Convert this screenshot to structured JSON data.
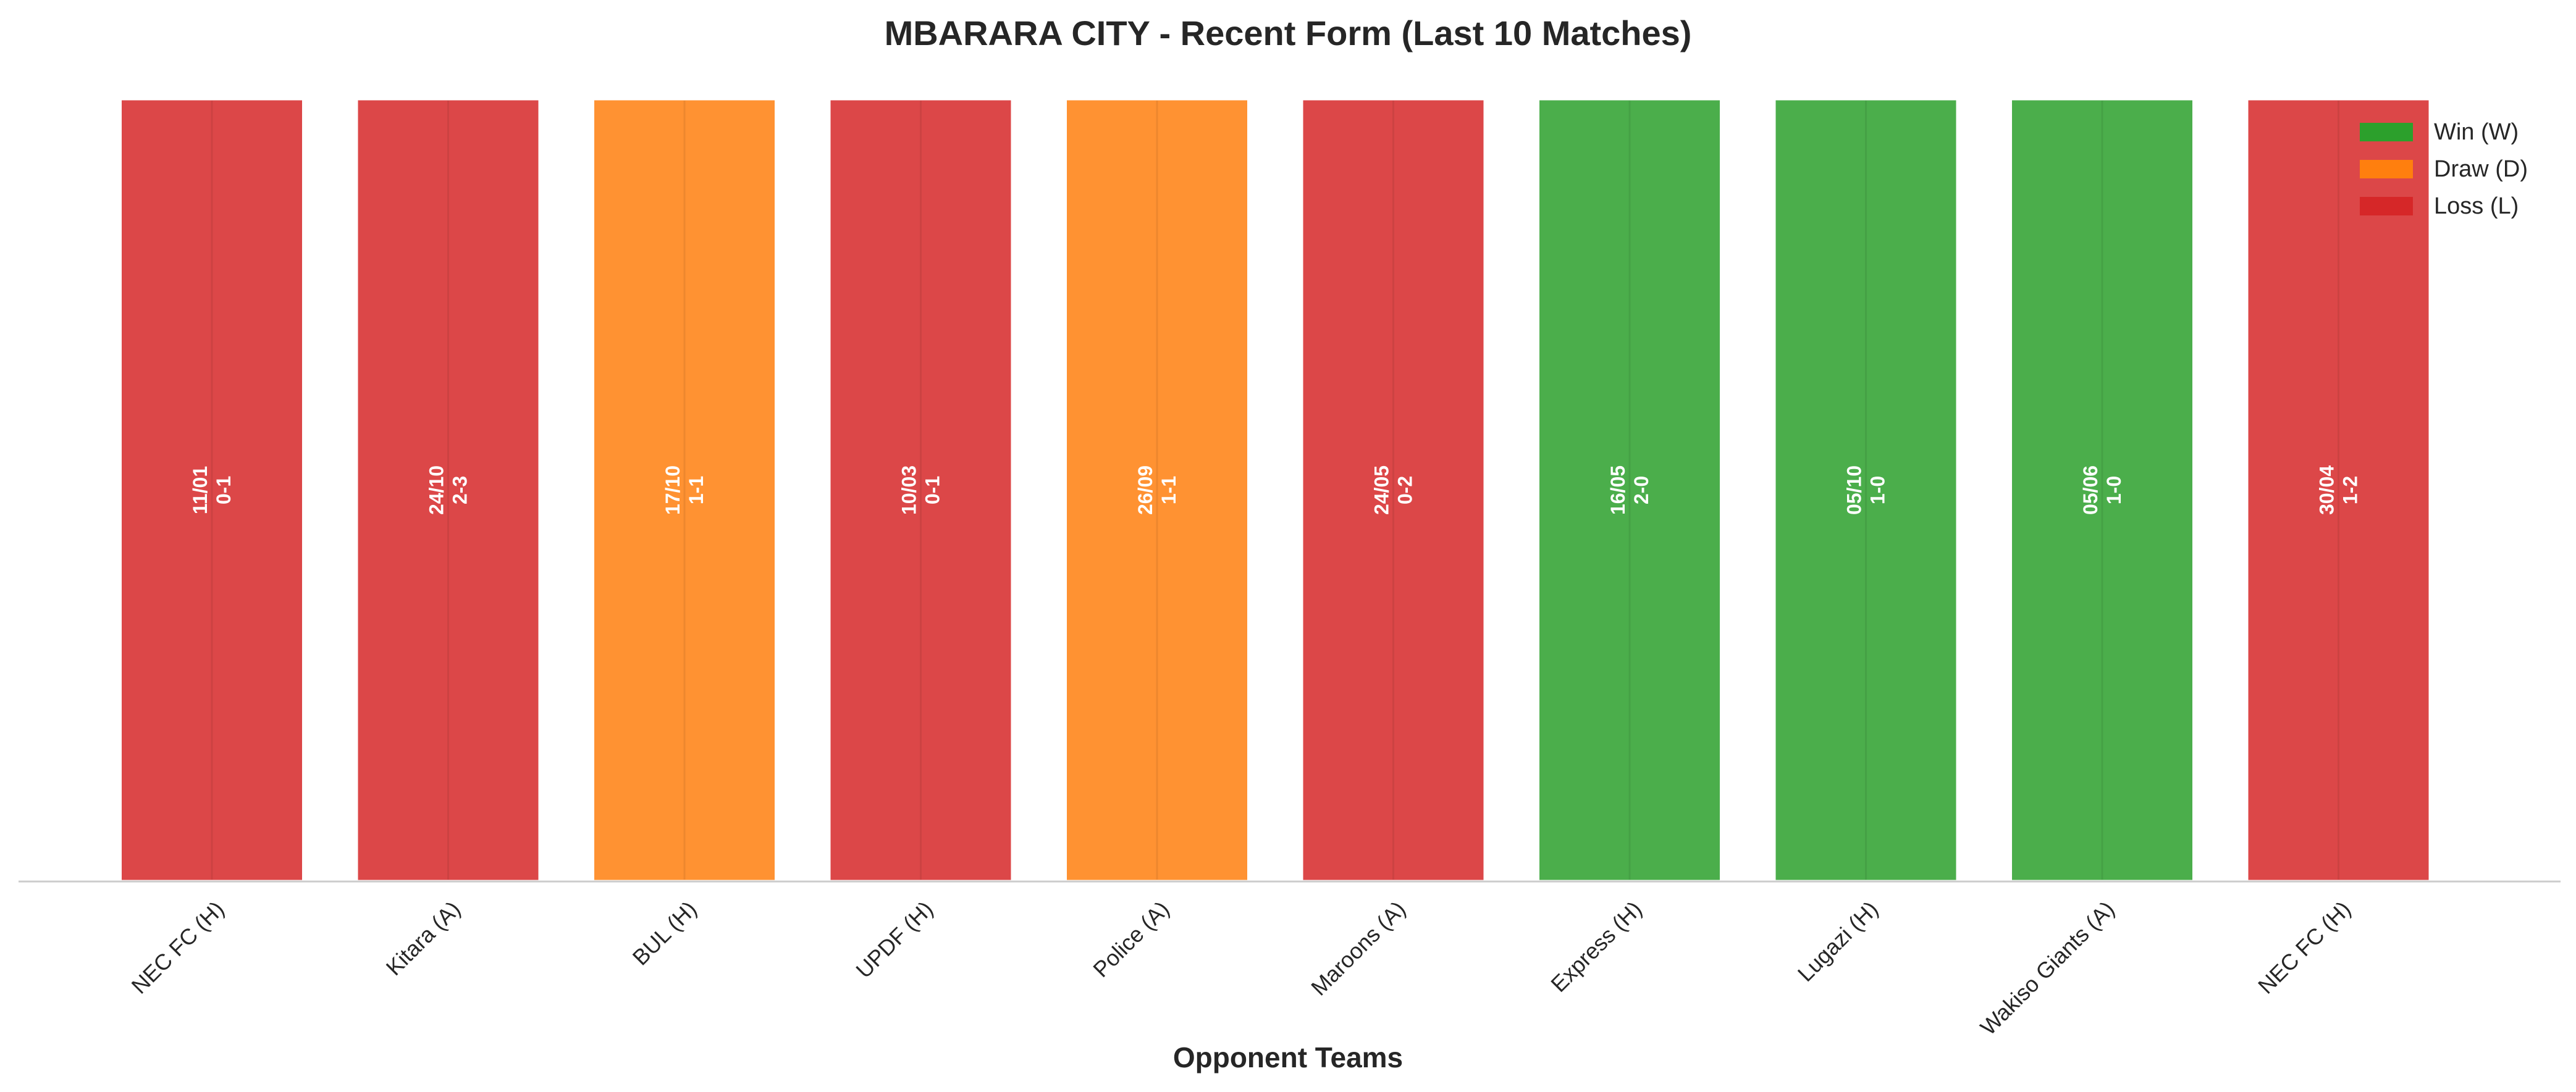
{
  "chart_data": {
    "type": "bar",
    "title": "MBARARA CITY - Recent Form (Last 10 Matches)",
    "xlabel": "Opponent Teams",
    "ylabel": "",
    "categories": [
      "NEC FC (H)",
      "Kitara (A)",
      "BUL (H)",
      "UPDF (H)",
      "Police (A)",
      "Maroons (A)",
      "Express (H)",
      "Lugazi (H)",
      "Wakiso Giants (A)",
      "NEC FC (H)"
    ],
    "values": [
      1,
      1,
      1,
      1,
      1,
      1,
      1,
      1,
      1,
      1
    ],
    "results": [
      "L",
      "L",
      "D",
      "L",
      "D",
      "L",
      "W",
      "W",
      "W",
      "L"
    ],
    "dates": [
      "11/01",
      "24/10",
      "17/10",
      "10/03",
      "26/09",
      "24/05",
      "16/05",
      "05/10",
      "05/06",
      "30/04"
    ],
    "scores": [
      "0-1",
      "2-3",
      "1-1",
      "0-1",
      "1-1",
      "0-2",
      "2-0",
      "1-0",
      "1-0",
      "1-2"
    ],
    "ylim": [
      0,
      1
    ],
    "grid": false,
    "legend": {
      "placement": "top-right",
      "entries": [
        {
          "key": "W",
          "label": "Win (W)",
          "color": "#2ca02c"
        },
        {
          "key": "D",
          "label": "Draw (D)",
          "color": "#ff7f0e"
        },
        {
          "key": "L",
          "label": "Loss (L)",
          "color": "#d62728"
        }
      ]
    }
  }
}
